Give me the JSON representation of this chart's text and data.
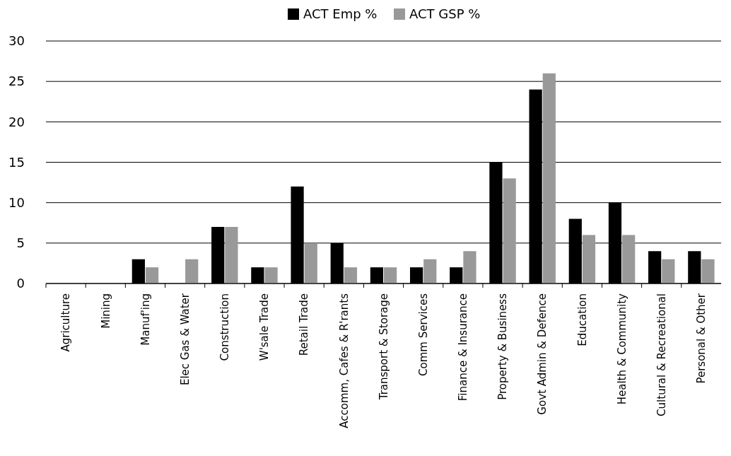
{
  "chart_data": {
    "type": "bar",
    "categories": [
      "Agriculture",
      "Mining",
      "Manuf'ing",
      "Elec Gas & Water",
      "Construction",
      "W'sale Trade",
      "Retail Trade",
      "Accomm, Cafes & R'rants",
      "Transport & Storage",
      "Comm Services",
      "Finance & Insurance",
      "Property & Business",
      "Govt Admin & Defence",
      "Education",
      "Health & Community",
      "Cultural & Recreational",
      "Personal & Other"
    ],
    "series": [
      {
        "name": "ACT Emp %",
        "color": "#000000",
        "values": [
          0,
          0,
          3,
          0,
          7,
          2,
          12,
          5,
          2,
          2,
          2,
          15,
          24,
          8,
          10,
          4,
          4
        ]
      },
      {
        "name": "ACT GSP %",
        "color": "#999999",
        "values": [
          0,
          0,
          2,
          3,
          7,
          2,
          5,
          2,
          2,
          3,
          4,
          13,
          26,
          6,
          6,
          3,
          3
        ]
      }
    ],
    "ylim": [
      0,
      30
    ],
    "yticks": [
      0,
      5,
      10,
      15,
      20,
      25,
      30
    ],
    "grid": "y",
    "legend": "top"
  }
}
